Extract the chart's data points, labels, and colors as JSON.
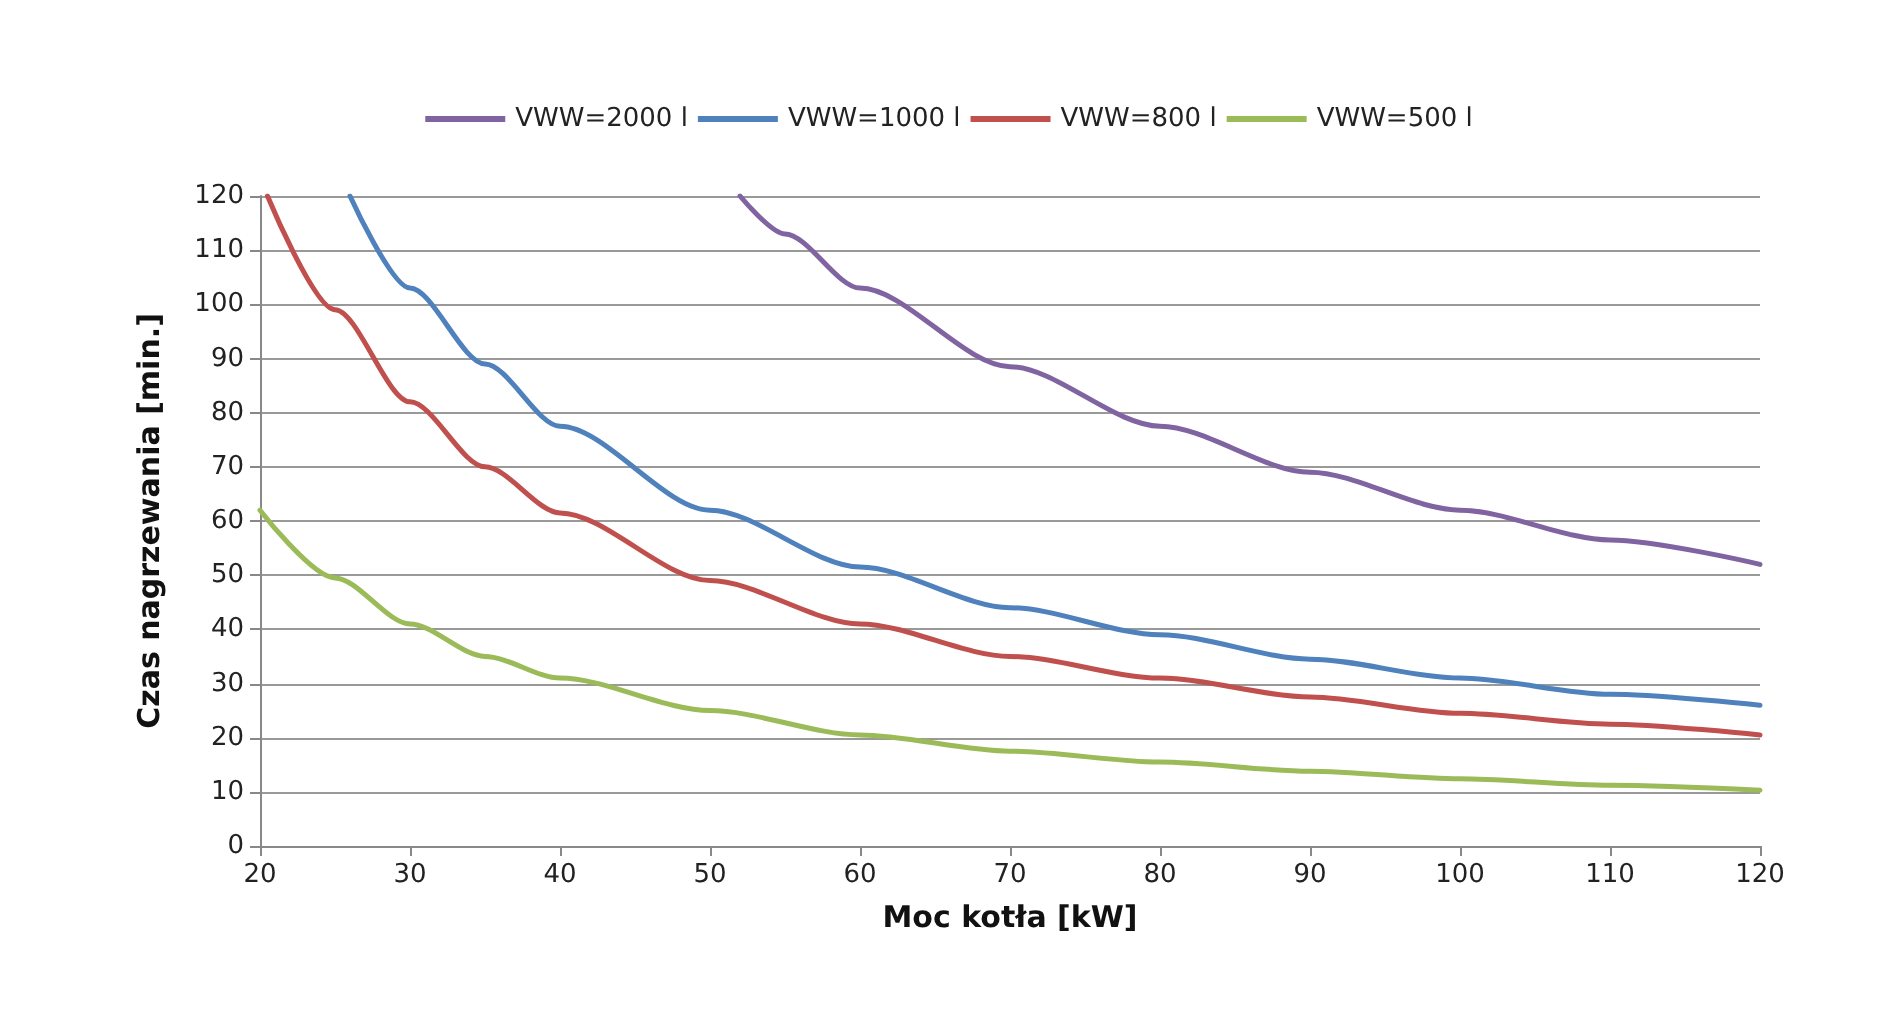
{
  "chart_data": {
    "type": "line",
    "xlabel": "Moc kotła [kW]",
    "ylabel": "Czas nagrzewania [min.]",
    "xlim": [
      20,
      120
    ],
    "xticks": [
      20,
      30,
      40,
      50,
      60,
      70,
      80,
      90,
      100,
      110,
      120
    ],
    "ylim": [
      0,
      120
    ],
    "yticks": [
      0,
      10,
      20,
      30,
      40,
      50,
      60,
      70,
      80,
      90,
      100,
      110,
      120
    ],
    "grid": "y",
    "legend": "top",
    "marker": "none",
    "line_style": "solid",
    "series": [
      {
        "name": "VWW=2000 l",
        "color": "#8064a2",
        "x": [
          52,
          55,
          60,
          70,
          80,
          90,
          100,
          110,
          120
        ],
        "values": [
          120,
          113,
          103,
          88.5,
          77.5,
          69,
          62,
          56.5,
          52
        ]
      },
      {
        "name": "VWW=1000 l",
        "color": "#4f81bd",
        "x": [
          26,
          30,
          35,
          40,
          50,
          60,
          70,
          80,
          90,
          100,
          110,
          120
        ],
        "values": [
          120,
          103,
          89,
          77.5,
          62,
          51.5,
          44,
          39,
          34.5,
          31,
          28,
          26
        ]
      },
      {
        "name": "VWW=800 l",
        "color": "#c0504d",
        "x": [
          20.5,
          25,
          30,
          35,
          40,
          50,
          60,
          70,
          80,
          90,
          100,
          110,
          120
        ],
        "values": [
          120,
          99,
          82,
          70,
          61.5,
          49,
          41,
          35,
          31,
          27.5,
          24.5,
          22.5,
          20.5
        ]
      },
      {
        "name": "VWW=500 l",
        "color": "#9bbb59",
        "x": [
          20,
          25,
          30,
          35,
          40,
          50,
          60,
          70,
          80,
          90,
          100,
          110,
          120
        ],
        "values": [
          62,
          49.5,
          41,
          35,
          31,
          25,
          20.5,
          17.5,
          15.5,
          13.8,
          12.4,
          11.2,
          10.3
        ]
      }
    ]
  }
}
